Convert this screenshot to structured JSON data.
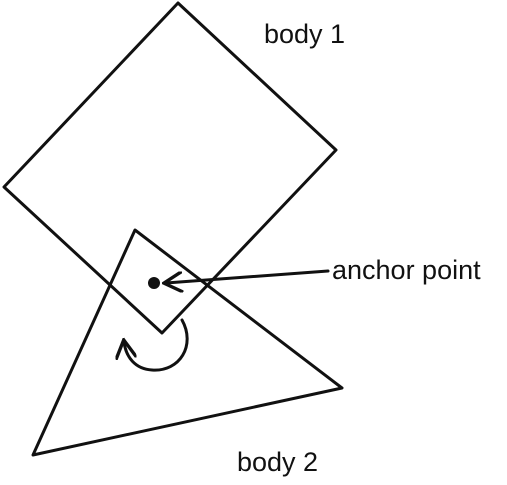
{
  "nodes": [
    {
      "label": "body 1"
    },
    {
      "label": "body 2"
    }
  ],
  "anchor": {
    "label": "anchor point"
  }
}
